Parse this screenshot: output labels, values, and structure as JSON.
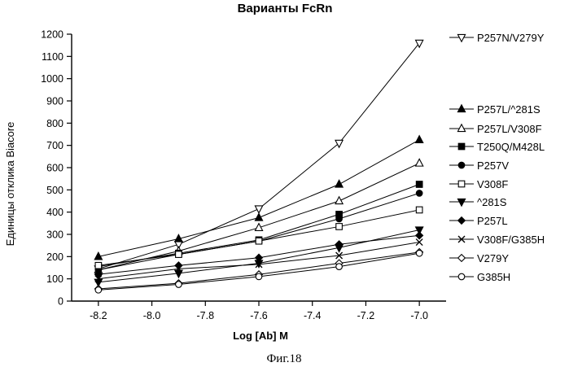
{
  "chart_data": {
    "type": "line",
    "title": "Варианты FcRn",
    "xlabel": "Log [Ab] M",
    "ylabel": "Единицы отклика Biacore",
    "caption": "Фиг.18",
    "x": [
      -8.2,
      -7.9,
      -7.6,
      -7.3,
      -7.0
    ],
    "xlim": [
      -8.3,
      -6.9
    ],
    "ylim": [
      0,
      1200
    ],
    "xticks": [
      -8.2,
      -8.0,
      -7.8,
      -7.6,
      -7.4,
      -7.2,
      -7.0
    ],
    "xtick_labels": [
      "-8.2",
      "-8.0",
      "-7.8",
      "-7.6",
      "-7.4",
      "-7.2",
      "-7.0"
    ],
    "yticks": [
      0,
      100,
      200,
      300,
      400,
      500,
      600,
      700,
      800,
      900,
      1000,
      1100,
      1200
    ],
    "ytick_labels": [
      "0",
      "100",
      "200",
      "300",
      "400",
      "500",
      "600",
      "700",
      "800",
      "900",
      "1000",
      "1100",
      "1200"
    ],
    "grid": false,
    "legend_position": "right",
    "series": [
      {
        "name": "P257N/V279Y",
        "marker": "triangle-down-open",
        "values": [
          145,
          255,
          415,
          710,
          1160
        ]
      },
      {
        "name": "P257L/^281S",
        "marker": "triangle-up-filled",
        "values": [
          200,
          280,
          375,
          525,
          725
        ]
      },
      {
        "name": "P257L/V308F",
        "marker": "triangle-up-open",
        "values": [
          140,
          225,
          330,
          450,
          620
        ]
      },
      {
        "name": "T250Q/M428L",
        "marker": "square-filled",
        "values": [
          155,
          215,
          275,
          390,
          525
        ]
      },
      {
        "name": "P257V",
        "marker": "circle-filled",
        "values": [
          140,
          210,
          270,
          370,
          485
        ]
      },
      {
        "name": "V308F",
        "marker": "square-open",
        "values": [
          160,
          210,
          270,
          335,
          410
        ]
      },
      {
        "name": "^281S",
        "marker": "triangle-down-filled",
        "values": [
          85,
          125,
          170,
          240,
          320
        ]
      },
      {
        "name": "P257L",
        "marker": "diamond-filled",
        "values": [
          120,
          160,
          195,
          255,
          295
        ]
      },
      {
        "name": "V308F/G385H",
        "marker": "x",
        "values": [
          100,
          145,
          165,
          205,
          265
        ]
      },
      {
        "name": "V279Y",
        "marker": "diamond-open",
        "values": [
          55,
          80,
          120,
          170,
          220
        ]
      },
      {
        "name": "G385H",
        "marker": "circle-open",
        "values": [
          50,
          75,
          110,
          155,
          215
        ]
      }
    ]
  }
}
